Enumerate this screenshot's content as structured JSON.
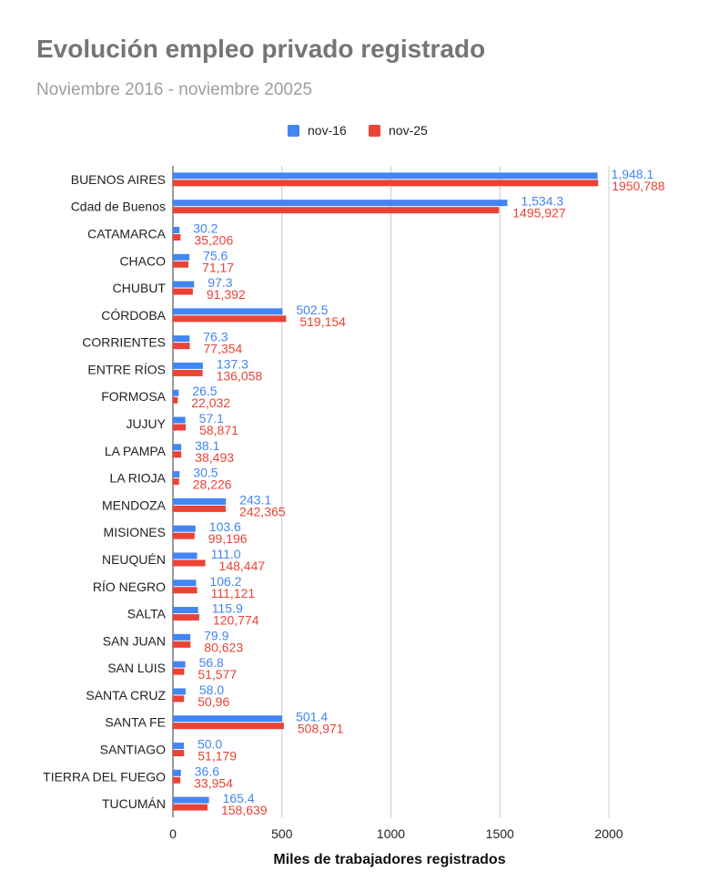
{
  "chart_data": {
    "type": "bar",
    "orientation": "horizontal",
    "title": "Evolución empleo privado registrado",
    "subtitle": "Noviembre 2016 - noviembre 20025",
    "xlabel": "Miles de trabajadores registrados",
    "ylabel": "",
    "xlim": [
      0,
      2000
    ],
    "xticks": [
      0,
      500,
      1000,
      1500,
      2000
    ],
    "grid": true,
    "legend_position": "top-center",
    "categories": [
      "BUENOS AIRES",
      "Cdad de Buenos",
      "CATAMARCA",
      "CHACO",
      "CHUBUT",
      "CÓRDOBA",
      "CORRIENTES",
      "ENTRE RÍOS",
      "FORMOSA",
      "JUJUY",
      "LA PAMPA",
      "LA RIOJA",
      "MENDOZA",
      "MISIONES",
      "NEUQUÉN",
      "RÍO NEGRO",
      "SALTA",
      "SAN JUAN",
      "SAN LUIS",
      "SANTA CRUZ",
      "SANTA FE",
      "SANTIAGO",
      "TIERRA DEL FUEGO",
      "TUCUMÁN"
    ],
    "series": [
      {
        "name": "nov-16",
        "color": "#4285f4",
        "values": [
          1948.1,
          1534.3,
          30.2,
          75.6,
          97.3,
          502.5,
          76.3,
          137.3,
          26.5,
          57.1,
          38.1,
          30.5,
          243.1,
          103.6,
          111.0,
          106.2,
          115.9,
          79.9,
          56.8,
          58.0,
          501.4,
          50.0,
          36.6,
          165.4
        ],
        "labels": [
          "1,948.1",
          "1,534.3",
          "30.2",
          "75.6",
          "97.3",
          "502.5",
          "76.3",
          "137.3",
          "26.5",
          "57.1",
          "38.1",
          "30.5",
          "243.1",
          "103.6",
          "111.0",
          "106.2",
          "115.9",
          "79.9",
          "56.8",
          "58.0",
          "501.4",
          "50.0",
          "36.6",
          "165.4"
        ]
      },
      {
        "name": "nov-25",
        "color": "#ea4335",
        "values": [
          1950.788,
          1495.927,
          35.206,
          71.17,
          91.392,
          519.154,
          77.354,
          136.058,
          22.032,
          58.871,
          38.493,
          28.226,
          242.365,
          99.196,
          148.447,
          111.121,
          120.774,
          80.623,
          51.577,
          50.96,
          508.971,
          51.179,
          33.954,
          158.639
        ],
        "labels": [
          "1950,788",
          "1495,927",
          "35,206",
          "71,17",
          "91,392",
          "519,154",
          "77,354",
          "136,058",
          "22,032",
          "58,871",
          "38,493",
          "28,226",
          "242,365",
          "99,196",
          "148,447",
          "111,121",
          "120,774",
          "80,623",
          "51,577",
          "50,96",
          "508,971",
          "51,179",
          "33,954",
          "158,639"
        ]
      }
    ]
  }
}
